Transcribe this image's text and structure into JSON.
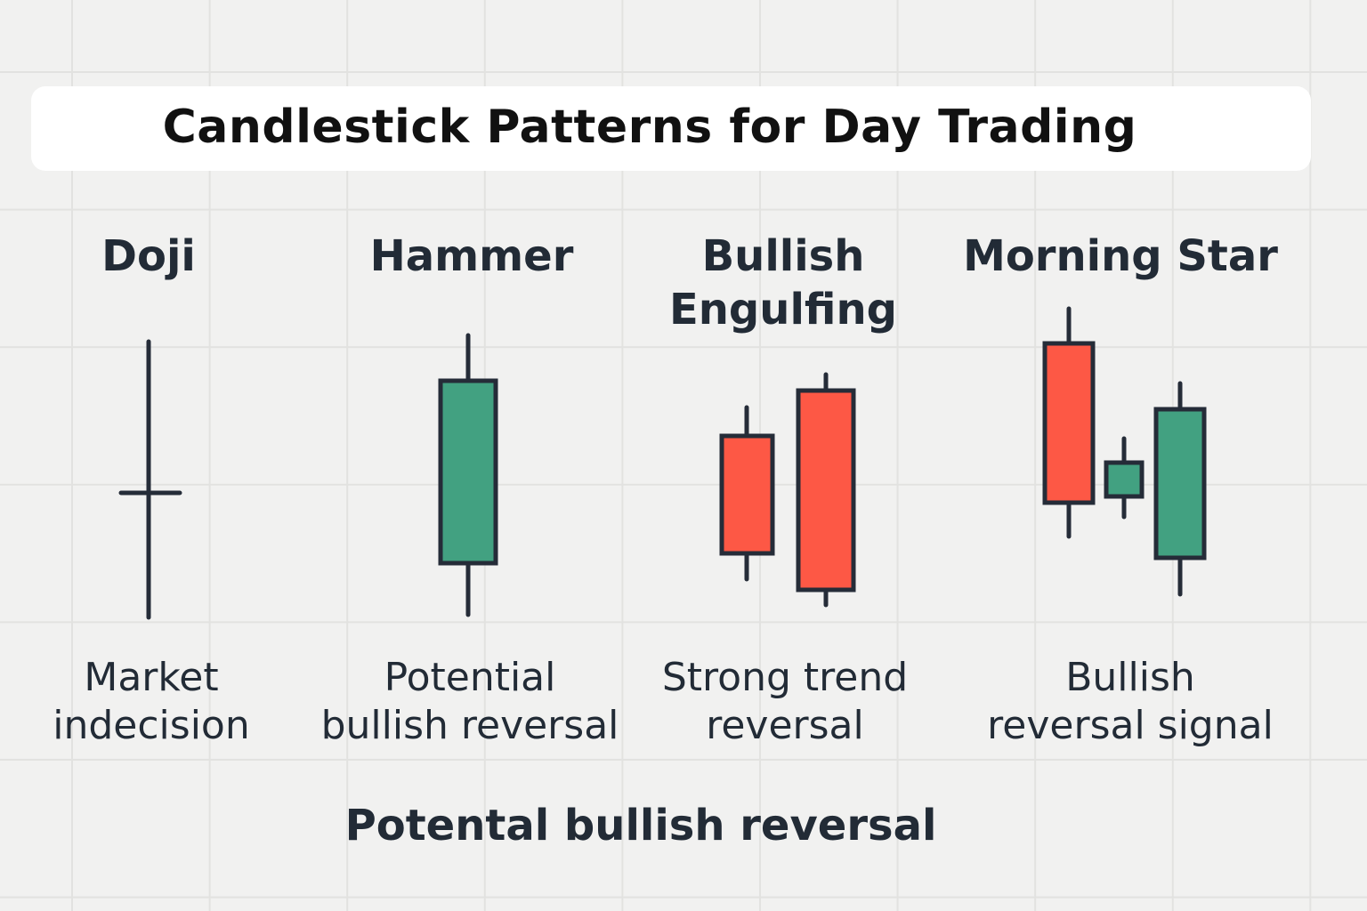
{
  "title": "Candlestick Patterns for Day Trading",
  "colors": {
    "bullish": "#42a181",
    "bearish": "#fd5845",
    "outline": "#252c38",
    "background": "#f1f1f0",
    "grid": "#e2e2e0",
    "title_card": "#ffffff"
  },
  "patterns": [
    {
      "name_lines": [
        "Doji"
      ],
      "description_lines": [
        "Market",
        "indecision"
      ],
      "candles": [
        {
          "type": "doji"
        }
      ]
    },
    {
      "name_lines": [
        "Hammer"
      ],
      "description_lines": [
        "Potential",
        "bullish reversal"
      ],
      "candles": [
        {
          "type": "bullish"
        }
      ]
    },
    {
      "name_lines": [
        "Bullish",
        "Engulfing"
      ],
      "description_lines": [
        "Strong trend",
        "reversal"
      ],
      "candles": [
        {
          "type": "bearish"
        },
        {
          "type": "bearish"
        }
      ]
    },
    {
      "name_lines": [
        "Morning Star"
      ],
      "description_lines": [
        "Bullish",
        "reversal signal"
      ],
      "candles": [
        {
          "type": "bearish"
        },
        {
          "type": "bullish"
        },
        {
          "type": "bullish"
        }
      ]
    }
  ],
  "footer": "Potental bullish reversal"
}
